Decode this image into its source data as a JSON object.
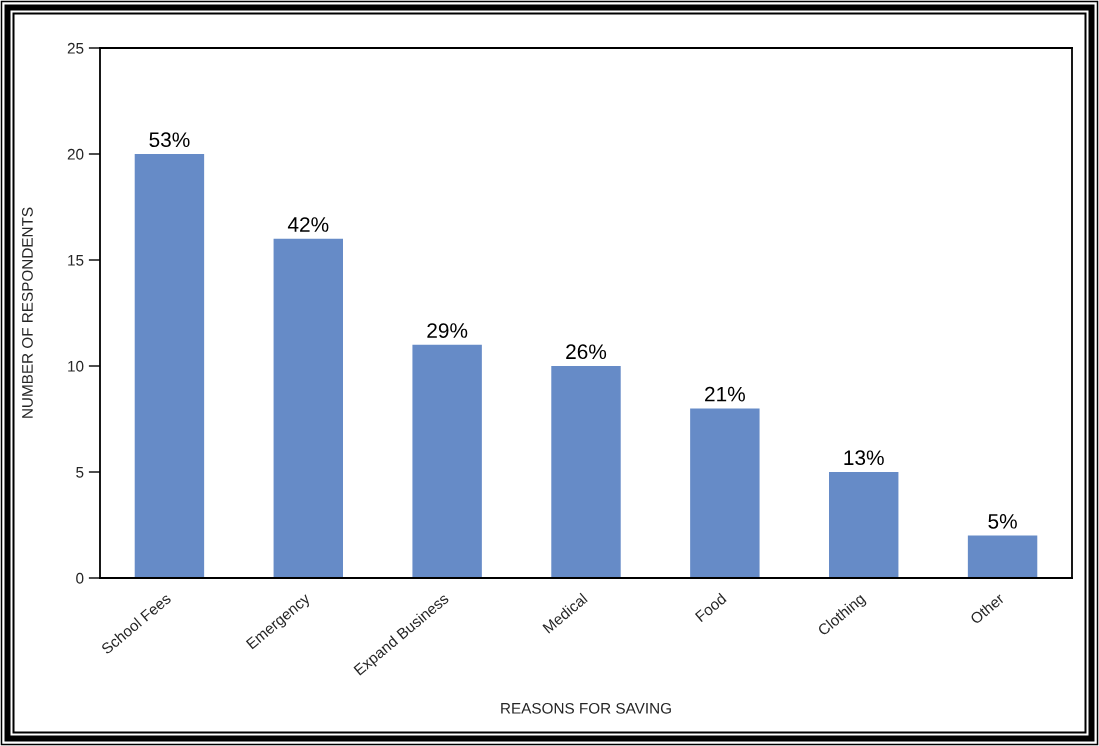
{
  "chart_data": {
    "type": "bar",
    "xlabel": "REASONS FOR SAVING",
    "ylabel": "NUMBER OF RESPONDENTS",
    "categories": [
      "School Fees",
      "Emergency",
      "Expand Business",
      "Medical",
      "Food",
      "Clothing",
      "Other"
    ],
    "values": [
      20,
      16,
      11,
      10,
      8,
      5,
      2
    ],
    "annotations": [
      {
        "text": "53%",
        "x": "School Fees",
        "y": 20
      },
      {
        "text": "42%",
        "x": "Emergency",
        "y": 16
      },
      {
        "text": "29%",
        "x": "Expand Business",
        "y": 11
      },
      {
        "text": "26%",
        "x": "Medical",
        "y": 10
      },
      {
        "text": "21%",
        "x": "Food",
        "y": 8
      },
      {
        "text": "13%",
        "x": "Clothing",
        "y": 5
      },
      {
        "text": "5%",
        "x": "Other",
        "y": 2
      }
    ],
    "color": "#668bc7",
    "ylim": [
      0,
      25
    ],
    "yticks": [
      0,
      5,
      10,
      15,
      20,
      25
    ]
  }
}
